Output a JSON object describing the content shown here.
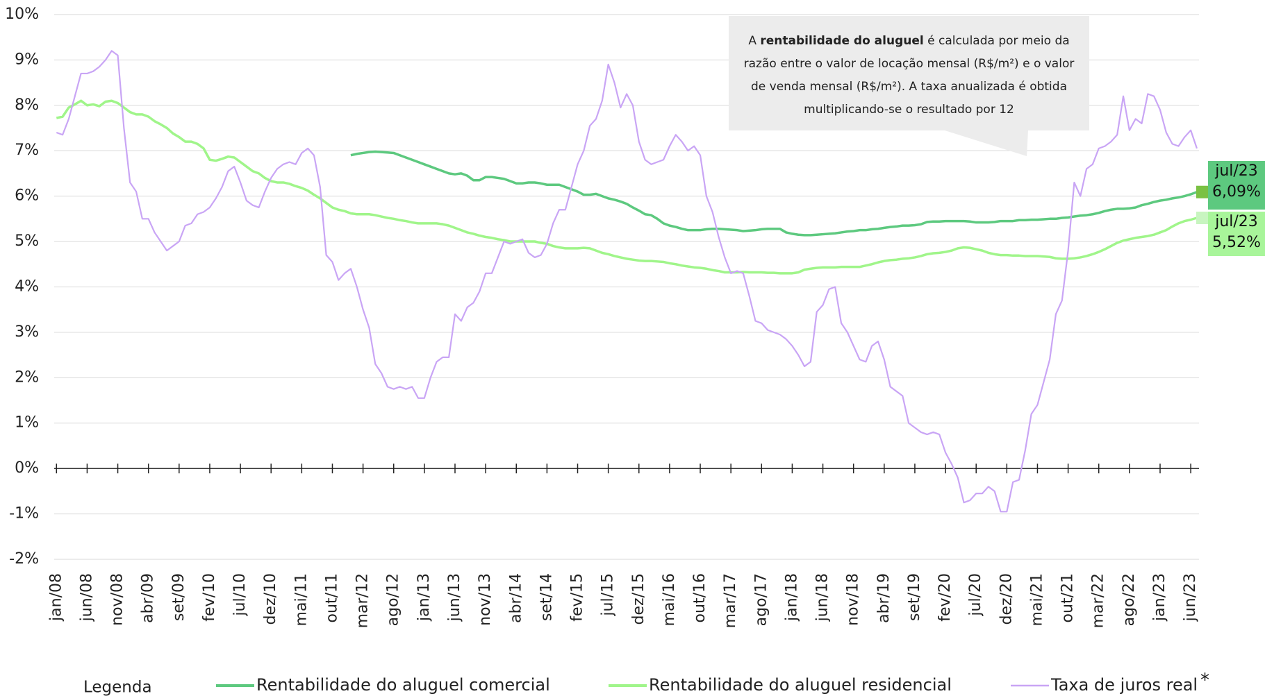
{
  "chart_data": {
    "type": "line",
    "categories": [
      "jan/08",
      null,
      null,
      null,
      null,
      "jun/08",
      null,
      null,
      null,
      null,
      "nov/08",
      null,
      null,
      null,
      null,
      "abr/09",
      null,
      null,
      null,
      null,
      "set/09",
      null,
      null,
      null,
      null,
      "fev/10",
      null,
      null,
      null,
      null,
      "jul/10",
      null,
      null,
      null,
      null,
      "dez/10",
      null,
      null,
      null,
      null,
      "mai/11",
      null,
      null,
      null,
      null,
      "out/11",
      null,
      null,
      null,
      null,
      "mar/12",
      null,
      null,
      null,
      null,
      "ago/12",
      null,
      null,
      null,
      null,
      "jan/13",
      null,
      null,
      null,
      null,
      "jun/13",
      null,
      null,
      null,
      null,
      "nov/13",
      null,
      null,
      null,
      null,
      "abr/14",
      null,
      null,
      null,
      null,
      "set/14",
      null,
      null,
      null,
      null,
      "fev/15",
      null,
      null,
      null,
      null,
      "jul/15",
      null,
      null,
      null,
      null,
      "dez/15",
      null,
      null,
      null,
      null,
      "mai/16",
      null,
      null,
      null,
      null,
      "out/16",
      null,
      null,
      null,
      null,
      "mar/17",
      null,
      null,
      null,
      null,
      "ago/17",
      null,
      null,
      null,
      null,
      "jan/18",
      null,
      null,
      null,
      null,
      "jun/18",
      null,
      null,
      null,
      null,
      "nov/18",
      null,
      null,
      null,
      null,
      "abr/19",
      null,
      null,
      null,
      null,
      "set/19",
      null,
      null,
      null,
      null,
      "fev/20",
      null,
      null,
      null,
      null,
      "jul/20",
      null,
      null,
      null,
      null,
      "dez/20",
      null,
      null,
      null,
      null,
      "mai/21",
      null,
      null,
      null,
      null,
      "out/21",
      null,
      null,
      null,
      null,
      "mar/22",
      null,
      null,
      null,
      null,
      "ago/22",
      null,
      null,
      null,
      null,
      "jan/23",
      null,
      null,
      null,
      null,
      "jun/23",
      null
    ],
    "series": [
      {
        "name": "Rentabilidade do aluguel comercial",
        "color": "#5dc97f",
        "end_label": {
          "date": "jul/23",
          "text": "6,09%",
          "box_color": "#5dc97f",
          "marker_color": "#7ac143"
        },
        "values": [
          null,
          null,
          null,
          null,
          null,
          null,
          null,
          null,
          null,
          null,
          null,
          null,
          null,
          null,
          null,
          null,
          null,
          null,
          null,
          null,
          null,
          null,
          null,
          null,
          null,
          null,
          null,
          null,
          null,
          null,
          null,
          null,
          null,
          null,
          null,
          null,
          null,
          null,
          null,
          null,
          null,
          null,
          null,
          null,
          null,
          null,
          null,
          null,
          6.9,
          6.93,
          6.95,
          6.97,
          6.98,
          6.97,
          6.96,
          6.95,
          6.9,
          6.85,
          6.8,
          6.75,
          6.7,
          6.65,
          6.6,
          6.55,
          6.5,
          6.48,
          6.5,
          6.45,
          6.35,
          6.35,
          6.42,
          6.42,
          6.4,
          6.38,
          6.33,
          6.28,
          6.28,
          6.3,
          6.3,
          6.28,
          6.25,
          6.25,
          6.25,
          6.2,
          6.15,
          6.1,
          6.03,
          6.03,
          6.05,
          6.0,
          5.95,
          5.92,
          5.88,
          5.83,
          5.75,
          5.68,
          5.6,
          5.58,
          5.5,
          5.4,
          5.35,
          5.32,
          5.28,
          5.25,
          5.25,
          5.25,
          5.27,
          5.28,
          5.28,
          5.27,
          5.26,
          5.25,
          5.23,
          5.24,
          5.25,
          5.27,
          5.28,
          5.28,
          5.28,
          5.2,
          5.17,
          5.15,
          5.14,
          5.14,
          5.15,
          5.16,
          5.17,
          5.18,
          5.2,
          5.22,
          5.23,
          5.25,
          5.25,
          5.27,
          5.28,
          5.3,
          5.32,
          5.33,
          5.35,
          5.35,
          5.36,
          5.38,
          5.43,
          5.44,
          5.44,
          5.45,
          5.45,
          5.45,
          5.45,
          5.44,
          5.42,
          5.42,
          5.42,
          5.43,
          5.45,
          5.45,
          5.45,
          5.47,
          5.47,
          5.48,
          5.48,
          5.49,
          5.5,
          5.5,
          5.52,
          5.53,
          5.55,
          5.57,
          5.58,
          5.6,
          5.63,
          5.67,
          5.7,
          5.72,
          5.72,
          5.73,
          5.75,
          5.8,
          5.83,
          5.87,
          5.9,
          5.92,
          5.95,
          5.97,
          6.0,
          6.04,
          6.09
        ]
      },
      {
        "name": "Rentabilidade do aluguel residencial",
        "color": "#a0f58a",
        "end_label": {
          "date": "jul/23",
          "text": "5,52%",
          "box_color": "#a8f59a",
          "marker_color": "#c8f5c0"
        },
        "values": [
          7.72,
          7.75,
          7.95,
          8.02,
          8.1,
          8.0,
          8.02,
          7.98,
          8.08,
          8.1,
          8.05,
          7.95,
          7.85,
          7.8,
          7.8,
          7.75,
          7.65,
          7.58,
          7.5,
          7.38,
          7.3,
          7.2,
          7.2,
          7.15,
          7.05,
          6.8,
          6.78,
          6.82,
          6.87,
          6.85,
          6.75,
          6.65,
          6.55,
          6.5,
          6.4,
          6.33,
          6.3,
          6.3,
          6.27,
          6.22,
          6.18,
          6.12,
          6.03,
          5.95,
          5.85,
          5.75,
          5.7,
          5.67,
          5.62,
          5.6,
          5.6,
          5.6,
          5.58,
          5.55,
          5.52,
          5.5,
          5.47,
          5.45,
          5.42,
          5.4,
          5.4,
          5.4,
          5.4,
          5.38,
          5.35,
          5.3,
          5.25,
          5.2,
          5.17,
          5.13,
          5.1,
          5.08,
          5.05,
          5.03,
          5.0,
          5.0,
          5.0,
          5.0,
          5.0,
          4.97,
          4.95,
          4.9,
          4.87,
          4.85,
          4.85,
          4.85,
          4.86,
          4.85,
          4.8,
          4.75,
          4.72,
          4.68,
          4.65,
          4.62,
          4.6,
          4.58,
          4.57,
          4.57,
          4.56,
          4.55,
          4.52,
          4.5,
          4.47,
          4.45,
          4.43,
          4.42,
          4.4,
          4.37,
          4.35,
          4.32,
          4.32,
          4.32,
          4.33,
          4.32,
          4.32,
          4.32,
          4.31,
          4.31,
          4.3,
          4.3,
          4.3,
          4.32,
          4.38,
          4.4,
          4.42,
          4.43,
          4.43,
          4.43,
          4.44,
          4.44,
          4.44,
          4.44,
          4.47,
          4.5,
          4.54,
          4.57,
          4.59,
          4.6,
          4.62,
          4.63,
          4.65,
          4.68,
          4.72,
          4.74,
          4.75,
          4.77,
          4.8,
          4.85,
          4.87,
          4.86,
          4.83,
          4.8,
          4.75,
          4.72,
          4.7,
          4.7,
          4.69,
          4.69,
          4.68,
          4.68,
          4.68,
          4.67,
          4.66,
          4.63,
          4.62,
          4.62,
          4.63,
          4.65,
          4.68,
          4.72,
          4.77,
          4.83,
          4.9,
          4.97,
          5.02,
          5.05,
          5.08,
          5.1,
          5.12,
          5.15,
          5.2,
          5.25,
          5.33,
          5.4,
          5.45,
          5.48,
          5.52
        ]
      },
      {
        "name": "Taxa de juros real",
        "color": "#c9a5f5",
        "values": [
          7.4,
          7.35,
          7.7,
          8.2,
          8.7,
          8.7,
          8.75,
          8.85,
          9.0,
          9.2,
          9.1,
          7.5,
          6.3,
          6.1,
          5.5,
          5.5,
          5.2,
          5.0,
          4.8,
          4.9,
          5.0,
          5.35,
          5.4,
          5.6,
          5.65,
          5.75,
          5.95,
          6.2,
          6.55,
          6.65,
          6.3,
          5.9,
          5.8,
          5.75,
          6.1,
          6.4,
          6.6,
          6.7,
          6.75,
          6.7,
          6.95,
          7.05,
          6.9,
          6.2,
          4.7,
          4.55,
          4.15,
          4.3,
          4.4,
          4.0,
          3.5,
          3.1,
          2.3,
          2.1,
          1.8,
          1.75,
          1.8,
          1.75,
          1.8,
          1.55,
          1.55,
          2.0,
          2.35,
          2.45,
          2.45,
          3.4,
          3.25,
          3.55,
          3.65,
          3.9,
          4.3,
          4.3,
          4.65,
          5.0,
          4.95,
          5.0,
          5.05,
          4.75,
          4.65,
          4.7,
          4.95,
          5.4,
          5.7,
          5.7,
          6.2,
          6.7,
          7.0,
          7.55,
          7.7,
          8.1,
          8.9,
          8.5,
          7.95,
          8.25,
          8.0,
          7.2,
          6.8,
          6.7,
          6.75,
          6.8,
          7.1,
          7.35,
          7.2,
          7.0,
          7.1,
          6.9,
          6.0,
          5.65,
          5.1,
          4.65,
          4.3,
          4.35,
          4.3,
          3.8,
          3.25,
          3.2,
          3.05,
          3.0,
          2.95,
          2.85,
          2.7,
          2.5,
          2.25,
          2.35,
          3.45,
          3.6,
          3.95,
          4.0,
          3.2,
          3.0,
          2.7,
          2.4,
          2.35,
          2.7,
          2.8,
          2.4,
          1.8,
          1.7,
          1.6,
          1.0,
          0.9,
          0.8,
          0.75,
          0.8,
          0.75,
          0.35,
          0.1,
          -0.2,
          -0.75,
          -0.7,
          -0.55,
          -0.55,
          -0.4,
          -0.5,
          -0.95,
          -0.95,
          -0.3,
          -0.25,
          0.4,
          1.2,
          1.4,
          1.9,
          2.4,
          3.4,
          3.7,
          4.8,
          6.3,
          6.0,
          6.6,
          6.7,
          7.05,
          7.1,
          7.2,
          7.35,
          8.2,
          7.45,
          7.7,
          7.6,
          8.25,
          8.2,
          7.9,
          7.4,
          7.15,
          7.1,
          7.3,
          7.45,
          7.05
        ]
      }
    ],
    "ylim": [
      -2,
      10
    ],
    "yticks": [
      {
        "value": -2,
        "label": "-2%"
      },
      {
        "value": -1,
        "label": "-1%"
      },
      {
        "value": 0,
        "label": "0%"
      },
      {
        "value": 1,
        "label": "1%"
      },
      {
        "value": 2,
        "label": "2%"
      },
      {
        "value": 3,
        "label": "3%"
      },
      {
        "value": 4,
        "label": "4%"
      },
      {
        "value": 5,
        "label": "5%"
      },
      {
        "value": 6,
        "label": "6%"
      },
      {
        "value": 7,
        "label": "7%"
      },
      {
        "value": 8,
        "label": "8%"
      },
      {
        "value": 9,
        "label": "9%"
      },
      {
        "value": 10,
        "label": "10%"
      }
    ],
    "grid": true,
    "legend_title": "Legenda",
    "footnote_marker": "*",
    "annotation": {
      "before": "A ",
      "bold": "rentabilidade do aluguel",
      "after": " é calculada por meio da razão entre o valor de locação mensal (R$/m²) e o valor de venda mensal (R$/m²).  A taxa anualizada é obtida multiplicando-se  o resultado por 12"
    }
  }
}
